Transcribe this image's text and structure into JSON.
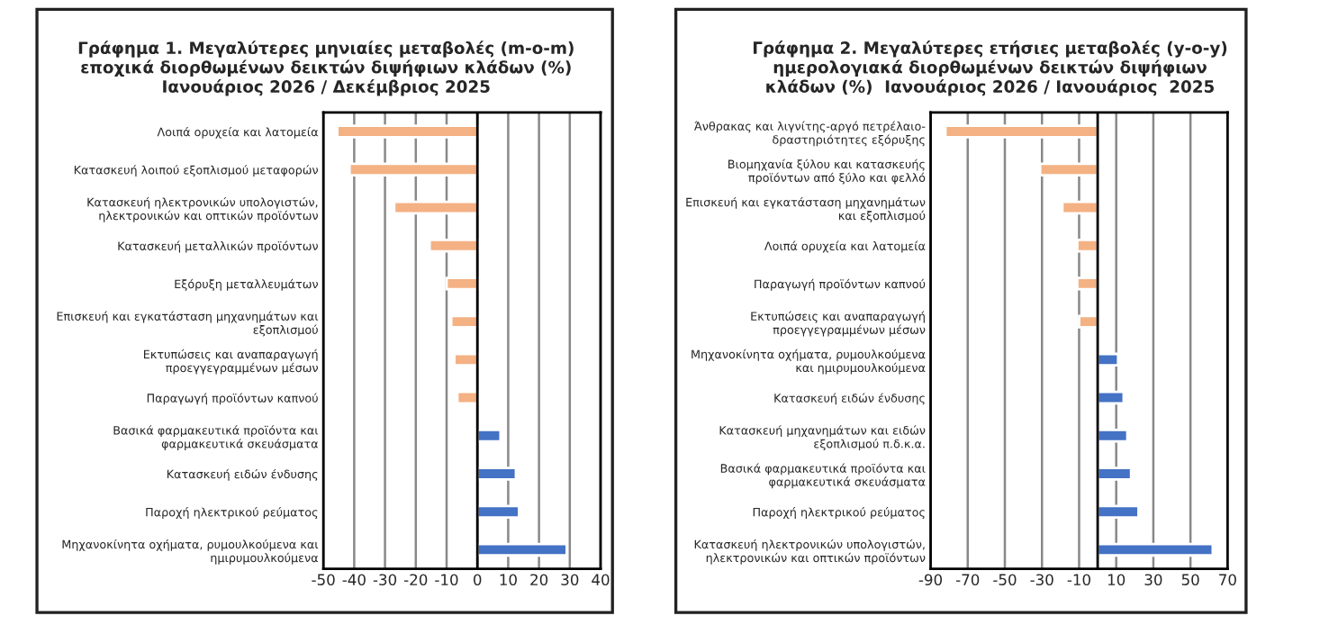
{
  "chart_data": [
    {
      "type": "bar",
      "orientation": "horizontal",
      "title": "Γράφημα 1. Μεγαλύτερες μηνιαίες μεταβολές (m-o-m)\nεποχικά διορθωμένων δεικτών διψήφιων κλάδων (%)\nΙανουάριος 2026 / Δεκέμβριος 2025",
      "categories": [
        "Λοιπά ορυχεία και λατομεία",
        "Κατασκευή λοιπού εξοπλισμού μεταφορών",
        "Κατασκευή ηλεκτρονικών υπολογιστών,\nηλεκτρονικών και οπτικών προϊόντων",
        "Κατασκευή μεταλλικών προϊόντων",
        "Εξόρυξη μεταλλευμάτων",
        "Επισκευή και εγκατάσταση μηχανημάτων και\nεξοπλισμού",
        "Εκτυπώσεις και αναπαραγωγή\nπροεγγεγραμμένων μέσων",
        "Παραγωγή προϊόντων καπνού",
        "Βασικά φαρμακευτικά προϊόντα και\nφαρμακευτικά σκευάσματα",
        "Κατασκευή ειδών ένδυσης",
        "Παροχή ηλεκτρικού ρεύματος",
        "Μηχανοκίνητα οχήματα, ρυμουλκούμενα και\nημιρυμουλκούμενα"
      ],
      "values": [
        -45.5,
        -41.5,
        -27,
        -15.5,
        -10,
        -8.5,
        -7.5,
        -6.5,
        7.5,
        12.5,
        13.5,
        29
      ],
      "colors": [
        "#f4b183",
        "#f4b183",
        "#f4b183",
        "#f4b183",
        "#f4b183",
        "#f4b183",
        "#f4b183",
        "#f4b183",
        "#4472c4",
        "#4472c4",
        "#4472c4",
        "#4472c4"
      ],
      "xlim": [
        -50,
        40
      ],
      "xticks": [
        -50,
        -40,
        -30,
        -20,
        -10,
        0,
        10,
        20,
        30,
        40
      ],
      "grid": "x"
    },
    {
      "type": "bar",
      "orientation": "horizontal",
      "title": "Γράφημα 2. Μεγαλύτερες ετήσιες μεταβολές (y-o-y)\nημερολογιακά διορθωμένων δεικτών διψήφιων\nκλάδων (%)  Ιανουάριος 2026 / Ιανουάριος  2025",
      "categories": [
        "Άνθρακας και λιγνίτης-αργό πετρέλαιο-\nδραστηριότητες εξόρυξης",
        "Βιομηχανία ξύλου και κατασκευής\nπροϊόντων από ξύλο και φελλό",
        "Επισκευή και εγκατάσταση μηχανημάτων\nκαι εξοπλισμού",
        "Λοιπά ορυχεία και λατομεία",
        "Παραγωγή προϊόντων καπνού",
        "Εκτυπώσεις και αναπαραγωγή\nπροεγγεγραμμένων μέσων",
        "Μηχανοκίνητα οχήματα, ρυμουλκούμενα\nκαι ημιρυμουλκούμενα",
        "Κατασκευή ειδών ένδυσης",
        "Κατασκευή μηχανημάτων και ειδών\nεξοπλισμού π.δ.κ.α.",
        "Βασικά φαρμακευτικά προϊόντα και\nφαρμακευτικά σκευάσματα",
        "Παροχή ηλεκτρικού ρεύματος",
        "Κατασκευή ηλεκτρονικών υπολογιστών,\nηλεκτρονικών και οπτικών προϊόντων"
      ],
      "values": [
        -82,
        -31,
        -19,
        -11,
        -11,
        -10,
        11,
        14,
        16,
        18,
        22,
        62
      ],
      "colors": [
        "#f4b183",
        "#f4b183",
        "#f4b183",
        "#f4b183",
        "#f4b183",
        "#f4b183",
        "#4472c4",
        "#4472c4",
        "#4472c4",
        "#4472c4",
        "#4472c4",
        "#4472c4"
      ],
      "xlim": [
        -90,
        70
      ],
      "xticks": [
        -90,
        -70,
        -50,
        -30,
        -10,
        10,
        30,
        50,
        70
      ],
      "grid": "x"
    }
  ]
}
